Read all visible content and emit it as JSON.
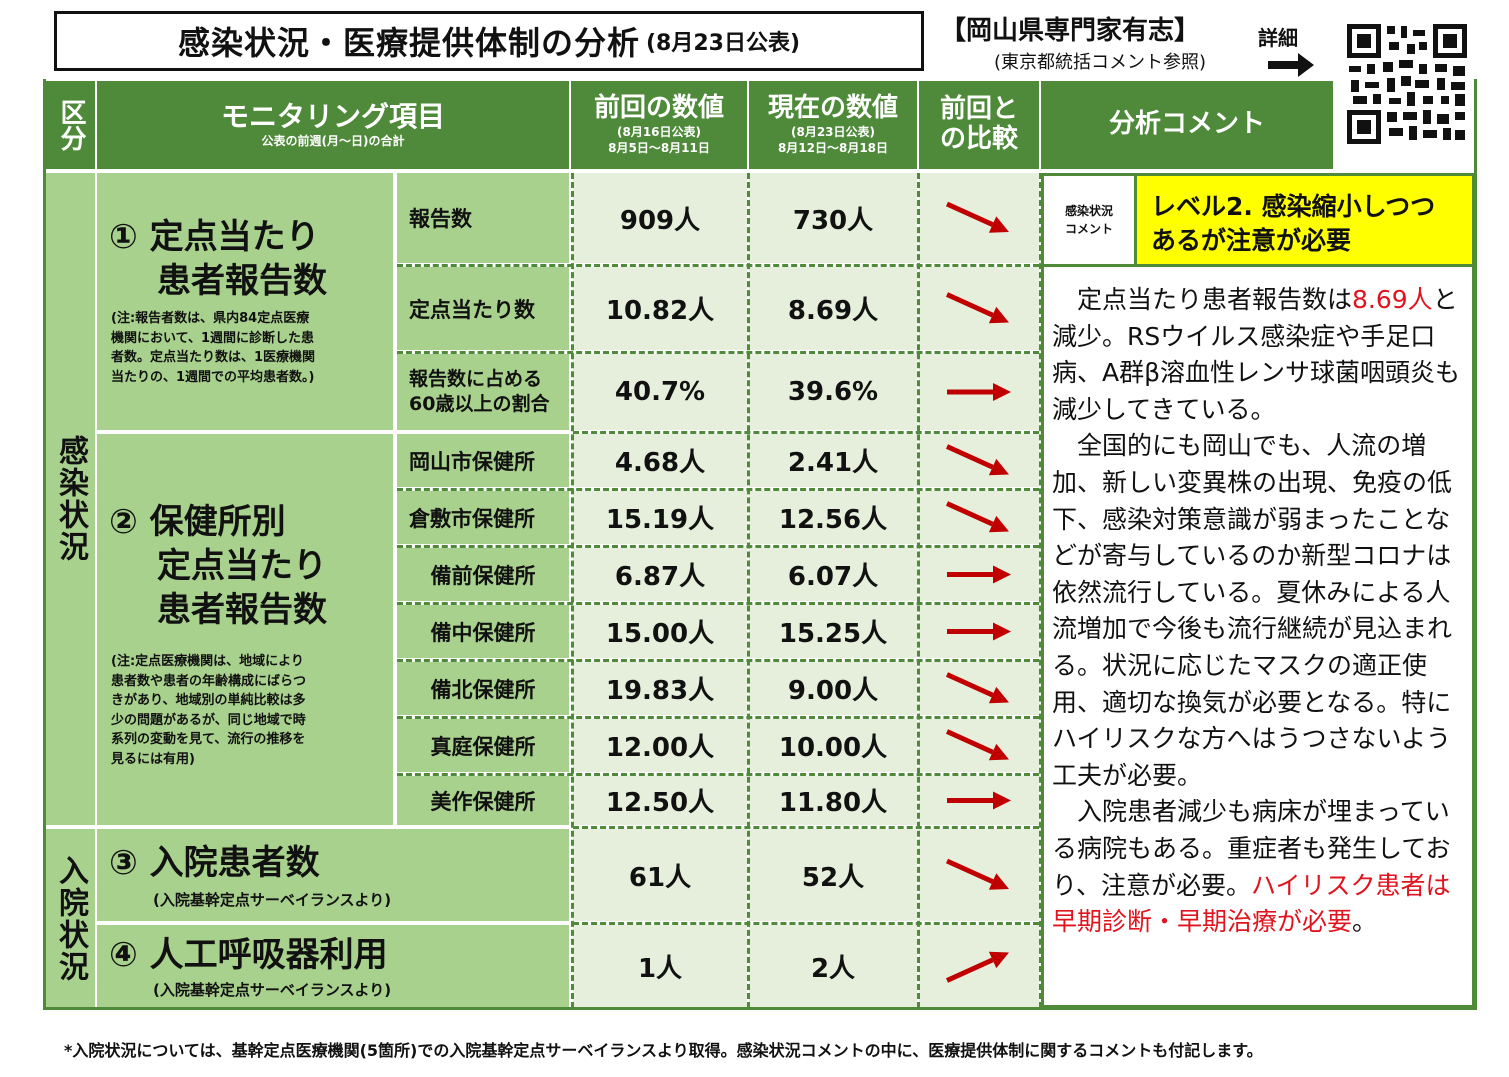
{
  "header": {
    "title_main": "感染状況・医療提供体制の分析",
    "title_date": "(8月23日公表)",
    "source_main": "【岡山県専門家有志】",
    "source_sub": "(東京都統括コメント参照)",
    "detail_label": "詳細"
  },
  "table_header": {
    "category": "区分",
    "monitoring": "モニタリング項目",
    "monitoring_sub": "公表の前週(月～日)の合計",
    "previous": "前回の数値",
    "previous_sub1": "(8月16日公表)",
    "previous_sub2": "8月5日～8月11日",
    "current": "現在の数値",
    "current_sub1": "(8月23日公表)",
    "current_sub2": "8月12日～8月18日",
    "compare1": "前回と",
    "compare2": "の比較",
    "comment": "分析コメント"
  },
  "sections": {
    "infection": "感染状況",
    "hospital": "入院状況"
  },
  "items": {
    "item1_line1": "① 定点当たり",
    "item1_line2": "患者報告数",
    "item1_note1": "(注:報告者数は、県内84定点医療",
    "item1_note2": "機関において、1週間に診断した患",
    "item1_note3": "者数。定点当たり数は、1医療機関",
    "item1_note4": "当たりの、1週間での平均患者数。)",
    "item2_line1": "② 保健所別",
    "item2_line2": "定点当たり",
    "item2_line3": "患者報告数",
    "item2_note1": "(注:定点医療機関は、地域により",
    "item2_note2": "患者数や患者の年齢構成にばらつ",
    "item2_note3": "きがあり、地域別の単純比較は多",
    "item2_note4": "少の問題があるが、同じ地域で時",
    "item2_note5": "系列の変動を見て、流行の推移を",
    "item2_note6": "見るには有用)",
    "item3_name": "③ 入院患者数",
    "item3_note": "(入院基幹定点サーベイランスより)",
    "item4_name": "④ 人工呼吸器利用",
    "item4_note": "(入院基幹定点サーベイランスより)"
  },
  "rows": [
    {
      "label": "報告数",
      "prev": "909人",
      "curr": "730人",
      "trend": "down"
    },
    {
      "label": "定点当たり数",
      "prev": "10.82人",
      "curr": "8.69人",
      "trend": "down"
    },
    {
      "label": "報告数に占める",
      "label2": "60歳以上の割合",
      "prev": "40.7%",
      "curr": "39.6%",
      "trend": "flat"
    },
    {
      "label": "岡山市保健所",
      "prev": "4.68人",
      "curr": "2.41人",
      "trend": "down"
    },
    {
      "label": "倉敷市保健所",
      "prev": "15.19人",
      "curr": "12.56人",
      "trend": "down"
    },
    {
      "label": "備前保健所",
      "prev": "6.87人",
      "curr": "6.07人",
      "trend": "flat"
    },
    {
      "label": "備中保健所",
      "prev": "15.00人",
      "curr": "15.25人",
      "trend": "flat"
    },
    {
      "label": "備北保健所",
      "prev": "19.83人",
      "curr": "9.00人",
      "trend": "down"
    },
    {
      "label": "真庭保健所",
      "prev": "12.00人",
      "curr": "10.00人",
      "trend": "down"
    },
    {
      "label": "美作保健所",
      "prev": "12.50人",
      "curr": "11.80人",
      "trend": "flat"
    },
    {
      "label": "",
      "prev": "61人",
      "curr": "52人",
      "trend": "down"
    },
    {
      "label": "",
      "prev": "1人",
      "curr": "2人",
      "trend": "up"
    }
  ],
  "level": {
    "small1": "感染状況",
    "small2": "コメント",
    "text1": "レベル2. 感染縮小しつつ",
    "text2": "あるが注意が必要"
  },
  "comment": {
    "p1_a": "　定点当たり患者報告数は",
    "p1_red": "8.69人",
    "p1_b": "と減少。RSウイルス感染症や手足口病、A群β溶血性レンサ球菌咽頭炎も減少してきている。",
    "p2": "　全国的にも岡山でも、人流の増加、新しい変異株の出現、免疫の低下、感染対策意識が弱まったことなどが寄与しているのか新型コロナは依然流行している。夏休みによる人流増加で今後も流行継続が見込まれる。状況に応じたマスクの適正使用、適切な換気が必要となる。特にハイリスクな方へはうつさないよう工夫が必要。",
    "p3_a": "　入院患者減少も病床が埋まっている病院もある。重症者も発生しており、注意が必要。",
    "p3_red": "ハイリスク患者は早期診断・早期治療が必要",
    "p3_b": "。"
  },
  "footer": "*入院状況については、基幹定点医療機関(5箇所)での入院基幹定点サーベイランスより取得。感染状況コメントの中に、医療提供体制に関するコメントも付記します。",
  "colors": {
    "header_green": "#4e8a3a",
    "light_green": "#a9d18e",
    "cell": "#e5efdc",
    "arrow_red": "#c00000",
    "level_yellow": "#ffff00"
  }
}
